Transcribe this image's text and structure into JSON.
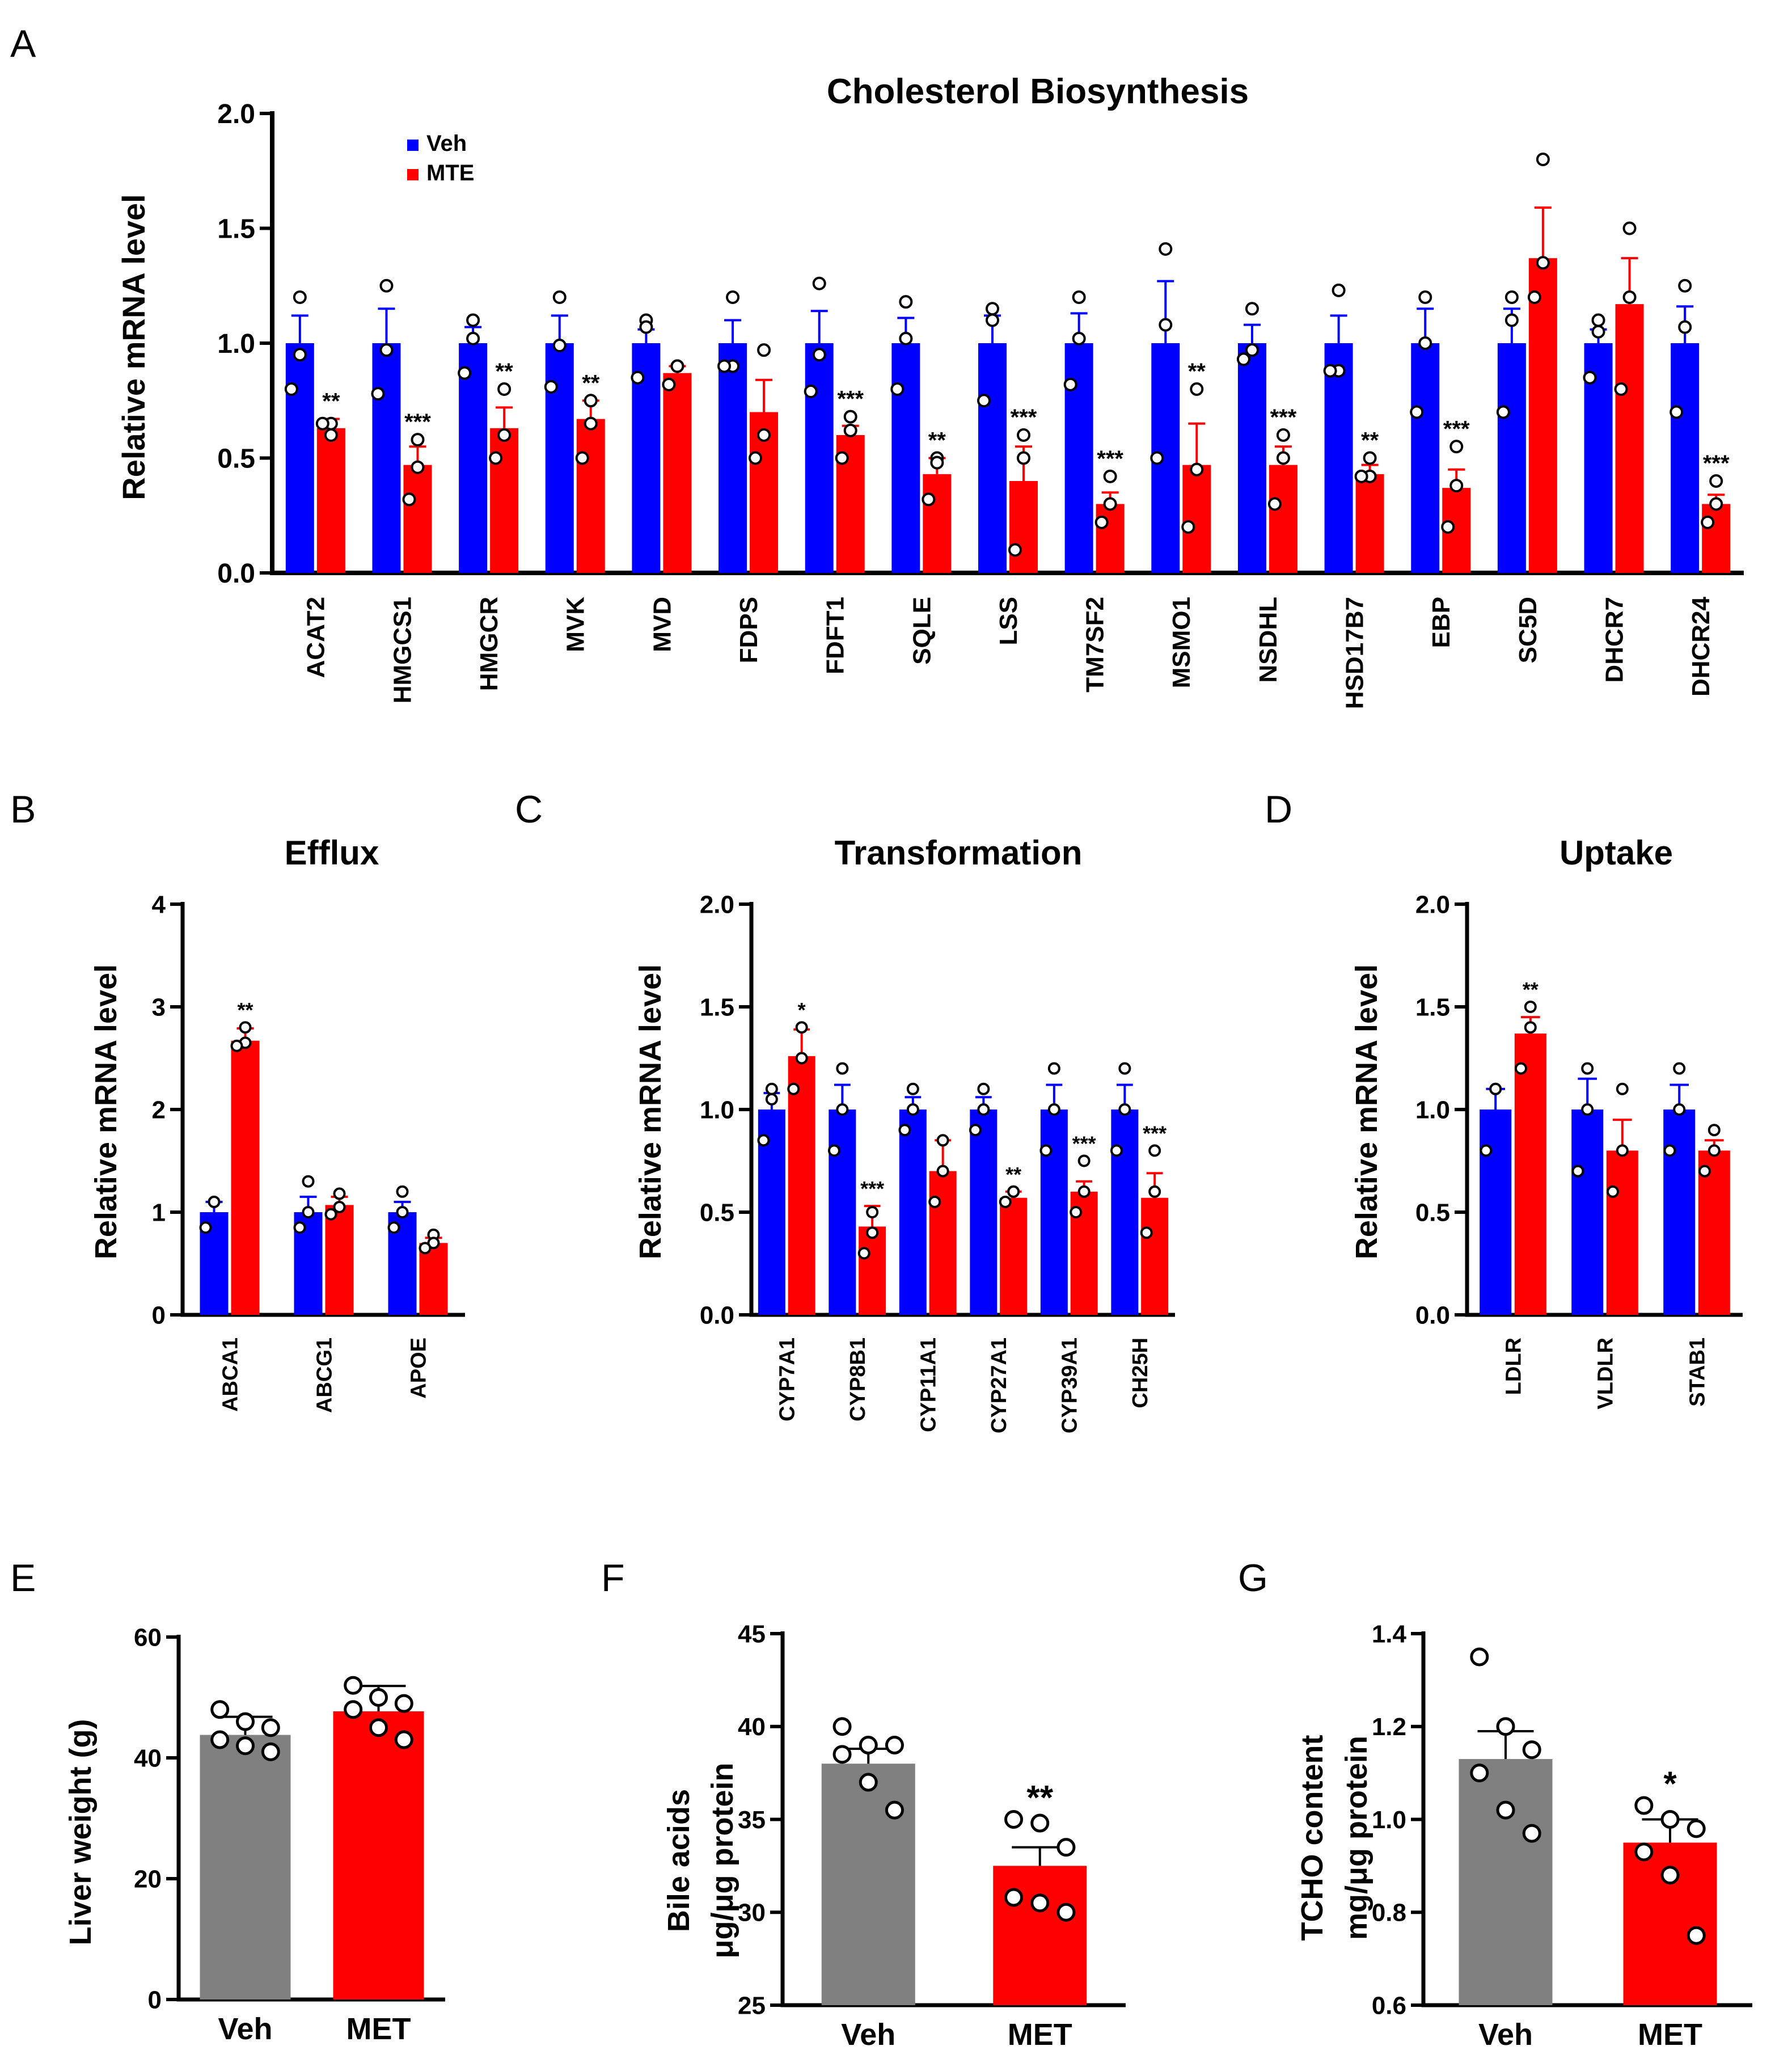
{
  "colors": {
    "veh": "#0000ff",
    "mte": "#ff0000",
    "gray": "#808080",
    "axis": "#000000",
    "error_veh": "#0000ff",
    "error_mte": "#ff0000"
  },
  "chart_data": [
    {
      "id": "A",
      "panel_letter": "A",
      "type": "bar",
      "title": "Cholesterol Biosynthesis",
      "ylabel": "Relative mRNA level",
      "ylim": [
        0,
        2.0
      ],
      "yticks": [
        "0.0",
        "0.5",
        "1.0",
        "1.5",
        "2.0"
      ],
      "legend": [
        "Veh",
        "MTE"
      ],
      "legend_position": "top-left",
      "categories": [
        "ACAT2",
        "HMGCS1",
        "HMGCR",
        "MVK",
        "MVD",
        "FDPS",
        "FDFT1",
        "SQLE",
        "LSS",
        "TM7SF2",
        "MSMO1",
        "NSDHL",
        "HSD17B7",
        "EBP",
        "SC5D",
        "DHCR7",
        "DHCR24"
      ],
      "series": [
        {
          "name": "Veh",
          "values": [
            1.0,
            1.0,
            1.0,
            1.0,
            1.0,
            1.0,
            1.0,
            1.0,
            1.0,
            1.0,
            1.0,
            1.0,
            1.0,
            1.0,
            1.0,
            1.0,
            1.0
          ],
          "errors": [
            0.12,
            0.15,
            0.07,
            0.12,
            0.06,
            0.1,
            0.14,
            0.11,
            0.12,
            0.13,
            0.27,
            0.08,
            0.12,
            0.15,
            0.15,
            0.06,
            0.16
          ],
          "points": [
            [
              1.2,
              0.95,
              0.8
            ],
            [
              1.25,
              0.97,
              0.78
            ],
            [
              1.1,
              1.02,
              0.87
            ],
            [
              1.2,
              0.99,
              0.81
            ],
            [
              1.1,
              1.07,
              0.85
            ],
            [
              1.2,
              0.9,
              0.9
            ],
            [
              1.26,
              0.95,
              0.79
            ],
            [
              1.18,
              1.02,
              0.8
            ],
            [
              1.15,
              1.1,
              0.75
            ],
            [
              1.2,
              1.02,
              0.82
            ],
            [
              1.41,
              1.08,
              0.5
            ],
            [
              1.15,
              0.97,
              0.93
            ],
            [
              1.23,
              0.88,
              0.88
            ],
            [
              1.2,
              1.0,
              0.7
            ],
            [
              1.2,
              1.1,
              0.7
            ],
            [
              1.1,
              1.05,
              0.85
            ],
            [
              1.25,
              1.07,
              0.7
            ]
          ]
        },
        {
          "name": "MTE",
          "values": [
            0.63,
            0.47,
            0.63,
            0.67,
            0.87,
            0.7,
            0.6,
            0.43,
            0.4,
            0.3,
            0.47,
            0.47,
            0.43,
            0.37,
            1.37,
            1.17,
            0.3
          ],
          "errors": [
            0.04,
            0.08,
            0.09,
            0.08,
            0.03,
            0.14,
            0.04,
            0.07,
            0.15,
            0.05,
            0.18,
            0.08,
            0.04,
            0.08,
            0.22,
            0.2,
            0.04
          ],
          "points": [
            [
              0.6,
              0.65,
              0.65
            ],
            [
              0.58,
              0.46,
              0.32
            ],
            [
              0.8,
              0.6,
              0.5
            ],
            [
              0.75,
              0.65,
              0.5
            ],
            [
              0.9,
              0.9,
              0.82
            ],
            [
              0.97,
              0.6,
              0.5
            ],
            [
              0.68,
              0.62,
              0.5
            ],
            [
              0.5,
              0.48,
              0.32
            ],
            [
              0.6,
              0.5,
              0.1
            ],
            [
              0.42,
              0.3,
              0.22
            ],
            [
              0.8,
              0.45,
              0.2
            ],
            [
              0.6,
              0.5,
              0.3
            ],
            [
              0.5,
              0.42,
              0.42
            ],
            [
              0.55,
              0.38,
              0.2
            ],
            [
              1.8,
              1.35,
              1.2
            ],
            [
              1.5,
              1.2,
              0.8
            ],
            [
              0.4,
              0.3,
              0.22
            ]
          ]
        }
      ],
      "significance": [
        "**",
        "***",
        "**",
        "**",
        "",
        "",
        "***",
        "**",
        "***",
        "***",
        "**",
        "***",
        "**",
        "***",
        "",
        "",
        "***"
      ]
    },
    {
      "id": "B",
      "panel_letter": "B",
      "type": "bar",
      "title": "Efflux",
      "ylabel": "Relative mRNA level",
      "ylim": [
        0,
        4
      ],
      "yticks": [
        "0",
        "1",
        "2",
        "3",
        "4"
      ],
      "categories": [
        "ABCA1",
        "ABCG1",
        "APOE"
      ],
      "series": [
        {
          "name": "Veh",
          "values": [
            1.0,
            1.0,
            1.0
          ],
          "errors": [
            0.1,
            0.15,
            0.1
          ],
          "points": [
            [
              1.1,
              1.1,
              0.85
            ],
            [
              1.3,
              1.0,
              0.85
            ],
            [
              1.2,
              1.0,
              0.85
            ]
          ]
        },
        {
          "name": "MTE",
          "values": [
            2.67,
            1.07,
            0.7
          ],
          "errors": [
            0.12,
            0.08,
            0.05
          ],
          "points": [
            [
              2.8,
              2.65,
              2.62
            ],
            [
              1.18,
              1.05,
              0.98
            ],
            [
              0.78,
              0.7,
              0.65
            ]
          ]
        }
      ],
      "significance": [
        "**",
        "",
        ""
      ]
    },
    {
      "id": "C",
      "panel_letter": "C",
      "type": "bar",
      "title": "Transformation",
      "ylabel": "Relative mRNA level",
      "ylim": [
        0,
        2.0
      ],
      "yticks": [
        "0.0",
        "0.5",
        "1.0",
        "1.5",
        "2.0"
      ],
      "categories": [
        "CYP7A1",
        "CYP8B1",
        "CYP11A1",
        "CYP27A1",
        "CYP39A1",
        "CH25H"
      ],
      "series": [
        {
          "name": "Veh",
          "values": [
            1.0,
            1.0,
            1.0,
            1.0,
            1.0,
            1.0
          ],
          "errors": [
            0.08,
            0.12,
            0.06,
            0.06,
            0.12,
            0.12
          ],
          "points": [
            [
              1.1,
              1.05,
              0.85
            ],
            [
              1.2,
              1.0,
              0.8
            ],
            [
              1.1,
              1.0,
              0.9
            ],
            [
              1.1,
              1.0,
              0.9
            ],
            [
              1.2,
              1.0,
              0.8
            ],
            [
              1.2,
              1.0,
              0.8
            ]
          ]
        },
        {
          "name": "MTE",
          "values": [
            1.26,
            0.43,
            0.7,
            0.57,
            0.6,
            0.57
          ],
          "errors": [
            0.13,
            0.1,
            0.15,
            0.03,
            0.05,
            0.12
          ],
          "points": [
            [
              1.4,
              1.25,
              1.1
            ],
            [
              0.5,
              0.4,
              0.3
            ],
            [
              0.85,
              0.7,
              0.55
            ],
            [
              0.6,
              0.6,
              0.55
            ],
            [
              0.75,
              0.6,
              0.5
            ],
            [
              0.8,
              0.6,
              0.4
            ]
          ]
        }
      ],
      "significance": [
        "*",
        "***",
        "",
        "**",
        "***",
        "***"
      ]
    },
    {
      "id": "D",
      "panel_letter": "D",
      "type": "bar",
      "title": "Uptake",
      "ylabel": "Relative mRNA level",
      "ylim": [
        0,
        2.0
      ],
      "yticks": [
        "0.0",
        "0.5",
        "1.0",
        "1.5",
        "2.0"
      ],
      "categories": [
        "LDLR",
        "VLDLR",
        "STAB1"
      ],
      "series": [
        {
          "name": "Veh",
          "values": [
            1.0,
            1.0,
            1.0
          ],
          "errors": [
            0.1,
            0.15,
            0.12
          ],
          "points": [
            [
              1.1,
              1.1,
              0.8
            ],
            [
              1.2,
              1.0,
              0.7
            ],
            [
              1.2,
              1.0,
              0.8
            ]
          ]
        },
        {
          "name": "MTE",
          "values": [
            1.37,
            0.8,
            0.8
          ],
          "errors": [
            0.08,
            0.15,
            0.05
          ],
          "points": [
            [
              1.5,
              1.4,
              1.2
            ],
            [
              1.1,
              0.8,
              0.6
            ],
            [
              0.9,
              0.8,
              0.7
            ]
          ]
        }
      ],
      "significance": [
        "**",
        "",
        ""
      ]
    },
    {
      "id": "E",
      "panel_letter": "E",
      "type": "bar",
      "title": "",
      "ylabel": "Liver weight (g)",
      "ylim": [
        0,
        60
      ],
      "yticks": [
        "0",
        "20",
        "40",
        "60"
      ],
      "categories": [
        "Veh",
        "MET"
      ],
      "values": [
        43.8,
        47.7
      ],
      "errors": [
        3.0,
        4.2
      ],
      "points": [
        [
          48,
          46,
          45,
          43,
          42,
          41
        ],
        [
          52,
          50,
          49,
          48,
          45,
          43
        ]
      ],
      "significance": [
        "",
        ""
      ]
    },
    {
      "id": "F",
      "panel_letter": "F",
      "type": "bar",
      "title": "",
      "ylabel": "Bile acids",
      "ylabel2": "μg/μg protein",
      "ylim": [
        25,
        45
      ],
      "yticks": [
        "25",
        "30",
        "35",
        "40",
        "45"
      ],
      "categories": [
        "Veh",
        "MET"
      ],
      "values": [
        38.0,
        32.5
      ],
      "errors": [
        0.8,
        1.0
      ],
      "points": [
        [
          40,
          39,
          39,
          38.5,
          37,
          35.5
        ],
        [
          35,
          34.8,
          33.5,
          30.8,
          30.5,
          30
        ]
      ],
      "significance": [
        "",
        "**"
      ]
    },
    {
      "id": "G",
      "panel_letter": "G",
      "type": "bar",
      "title": "",
      "ylabel": "TCHO content",
      "ylabel2": "mg/μg protein",
      "ylim": [
        0.6,
        1.4
      ],
      "yticks": [
        "0.6",
        "0.8",
        "1.0",
        "1.2",
        "1.4"
      ],
      "categories": [
        "Veh",
        "MET"
      ],
      "values": [
        1.13,
        0.95
      ],
      "errors": [
        0.06,
        0.05
      ],
      "points": [
        [
          1.35,
          1.2,
          1.15,
          1.1,
          1.02,
          0.97
        ],
        [
          1.03,
          1.0,
          0.98,
          0.93,
          0.88,
          0.75
        ]
      ],
      "significance": [
        "",
        "*"
      ]
    }
  ]
}
